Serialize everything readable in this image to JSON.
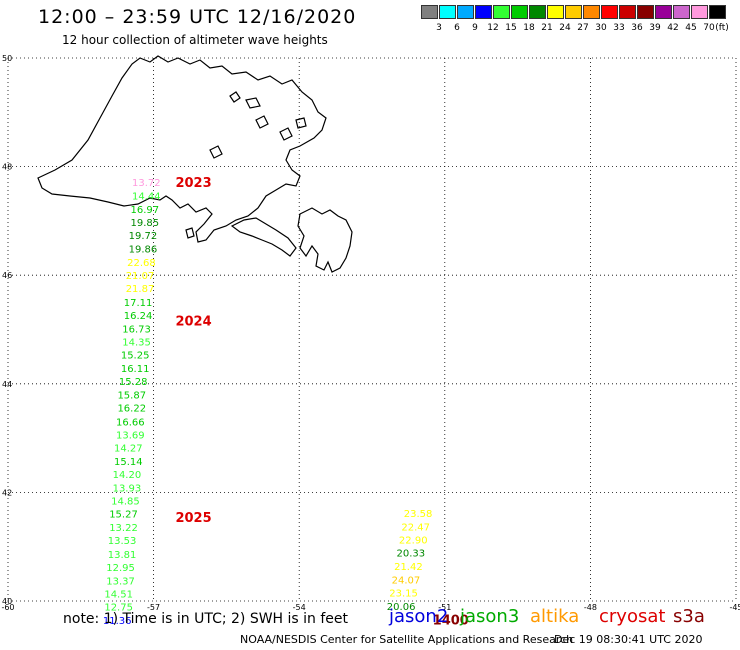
{
  "title": "12:00 – 23:59 UTC 12/16/2020",
  "subtitle": "12 hour collection of altimeter wave heights",
  "color_scale": {
    "labels": [
      "3",
      "6",
      "9",
      "12",
      "15",
      "18",
      "21",
      "24",
      "27",
      "30",
      "33",
      "36",
      "39",
      "42",
      "45",
      "70"
    ],
    "unit": "(ft)",
    "colors": [
      "#808080",
      "#00ffff",
      "#00aaff",
      "#0000ff",
      "#33ff33",
      "#00cc00",
      "#008800",
      "#ffff00",
      "#ffcc00",
      "#ff8800",
      "#ff0000",
      "#cc0000",
      "#880000",
      "#990099",
      "#cc66cc",
      "#ff99dd",
      "#000000"
    ]
  },
  "map": {
    "lon_ticks": [
      "-60",
      "-57",
      "-54",
      "-51",
      "-48",
      "-45"
    ],
    "lat_ticks": [
      "50",
      "48",
      "46",
      "44",
      "42",
      "40"
    ],
    "lon_range": [
      -60,
      -45
    ],
    "lat_range": [
      40,
      50
    ],
    "grid": "dotted",
    "coastline_icon": "newfoundland-coastline"
  },
  "tracks": [
    {
      "time_labels": [
        {
          "text": "2023",
          "lat": 47.72
        },
        {
          "text": "2024",
          "lat": 45.17
        },
        {
          "text": "2025",
          "lat": 41.55
        }
      ],
      "points": [
        {
          "v": "13.72",
          "c": "#ff99dd",
          "lon": -57.15,
          "lat": 47.72
        },
        {
          "v": "14.44",
          "c": "#33ff33",
          "lon": -57.15,
          "lat": 47.47
        },
        {
          "v": "16.97",
          "c": "#00cc00",
          "lon": -57.18,
          "lat": 47.22
        },
        {
          "v": "19.85",
          "c": "#008800",
          "lon": -57.18,
          "lat": 46.98
        },
        {
          "v": "19.72",
          "c": "#008800",
          "lon": -57.22,
          "lat": 46.74
        },
        {
          "v": "19.86",
          "c": "#008800",
          "lon": -57.22,
          "lat": 46.49
        },
        {
          "v": "22.68",
          "c": "#ffff00",
          "lon": -57.25,
          "lat": 46.24
        },
        {
          "v": "21.07",
          "c": "#ffff00",
          "lon": -57.28,
          "lat": 46.0
        },
        {
          "v": "21.87",
          "c": "#ffff00",
          "lon": -57.28,
          "lat": 45.76
        },
        {
          "v": "17.11",
          "c": "#00cc00",
          "lon": -57.32,
          "lat": 45.51
        },
        {
          "v": "16.24",
          "c": "#00cc00",
          "lon": -57.32,
          "lat": 45.27
        },
        {
          "v": "16.73",
          "c": "#00cc00",
          "lon": -57.35,
          "lat": 45.02
        },
        {
          "v": "14.35",
          "c": "#33ff33",
          "lon": -57.35,
          "lat": 44.78
        },
        {
          "v": "15.25",
          "c": "#00cc00",
          "lon": -57.38,
          "lat": 44.54
        },
        {
          "v": "16.11",
          "c": "#00cc00",
          "lon": -57.38,
          "lat": 44.29
        },
        {
          "v": "15.28",
          "c": "#00cc00",
          "lon": -57.42,
          "lat": 44.05
        },
        {
          "v": "15.87",
          "c": "#00cc00",
          "lon": -57.45,
          "lat": 43.8
        },
        {
          "v": "16.22",
          "c": "#00cc00",
          "lon": -57.45,
          "lat": 43.56
        },
        {
          "v": "16.66",
          "c": "#00cc00",
          "lon": -57.48,
          "lat": 43.31
        },
        {
          "v": "13.69",
          "c": "#33ff33",
          "lon": -57.48,
          "lat": 43.07
        },
        {
          "v": "14.27",
          "c": "#33ff33",
          "lon": -57.52,
          "lat": 42.83
        },
        {
          "v": "15.14",
          "c": "#00cc00",
          "lon": -57.52,
          "lat": 42.58
        },
        {
          "v": "14.20",
          "c": "#33ff33",
          "lon": -57.55,
          "lat": 42.34
        },
        {
          "v": "13.93",
          "c": "#33ff33",
          "lon": -57.55,
          "lat": 42.09
        },
        {
          "v": "14.85",
          "c": "#33ff33",
          "lon": -57.58,
          "lat": 41.85
        },
        {
          "v": "15.27",
          "c": "#00cc00",
          "lon": -57.62,
          "lat": 41.61
        },
        {
          "v": "13.22",
          "c": "#33ff33",
          "lon": -57.62,
          "lat": 41.36
        },
        {
          "v": "13.53",
          "c": "#33ff33",
          "lon": -57.65,
          "lat": 41.12
        },
        {
          "v": "13.81",
          "c": "#33ff33",
          "lon": -57.65,
          "lat": 40.87
        },
        {
          "v": "12.95",
          "c": "#33ff33",
          "lon": -57.68,
          "lat": 40.63
        },
        {
          "v": "13.37",
          "c": "#33ff33",
          "lon": -57.68,
          "lat": 40.38
        },
        {
          "v": "14.51",
          "c": "#33ff33",
          "lon": -57.72,
          "lat": 40.14
        },
        {
          "v": "12.75",
          "c": "#33ff33",
          "lon": -57.72,
          "lat": 39.9
        },
        {
          "v": "11.36",
          "c": "#0000ff",
          "lon": -57.75,
          "lat": 39.65
        }
      ]
    },
    {
      "time_labels": [
        {
          "text": "1400",
          "lat": 39.66
        }
      ],
      "points": [
        {
          "v": "23.58",
          "c": "#ffff00",
          "lon": -51.55,
          "lat": 41.62
        },
        {
          "v": "22.47",
          "c": "#ffff00",
          "lon": -51.6,
          "lat": 41.37
        },
        {
          "v": "22.90",
          "c": "#ffff00",
          "lon": -51.65,
          "lat": 41.13
        },
        {
          "v": "20.33",
          "c": "#008800",
          "lon": -51.7,
          "lat": 40.89
        },
        {
          "v": "21.42",
          "c": "#ffff00",
          "lon": -51.75,
          "lat": 40.64
        },
        {
          "v": "24.07",
          "c": "#ffcc00",
          "lon": -51.8,
          "lat": 40.4
        },
        {
          "v": "23.15",
          "c": "#ffff00",
          "lon": -51.85,
          "lat": 40.16
        },
        {
          "v": "20.06",
          "c": "#008800",
          "lon": -51.9,
          "lat": 39.91
        }
      ]
    }
  ],
  "time_label_color": "#dd0000",
  "time_label_1400_color": "#880000",
  "footer": {
    "note": "note:  1) Time is in UTC;  2) SWH is in feet",
    "satellites": [
      {
        "name": "jason2",
        "color": "#0000dd"
      },
      {
        "name": "jason3",
        "color": "#00aa00"
      },
      {
        "name": "altika",
        "color": "#ff9900"
      },
      {
        "name": "cryosat",
        "color": "#dd0000"
      },
      {
        "name": "s3a",
        "color": "#880000"
      }
    ],
    "credit": "NOAA/NESDIS Center for Satellite Applications and Research",
    "timestamp": "Dec 19 08:30:41 UTC 2020"
  }
}
